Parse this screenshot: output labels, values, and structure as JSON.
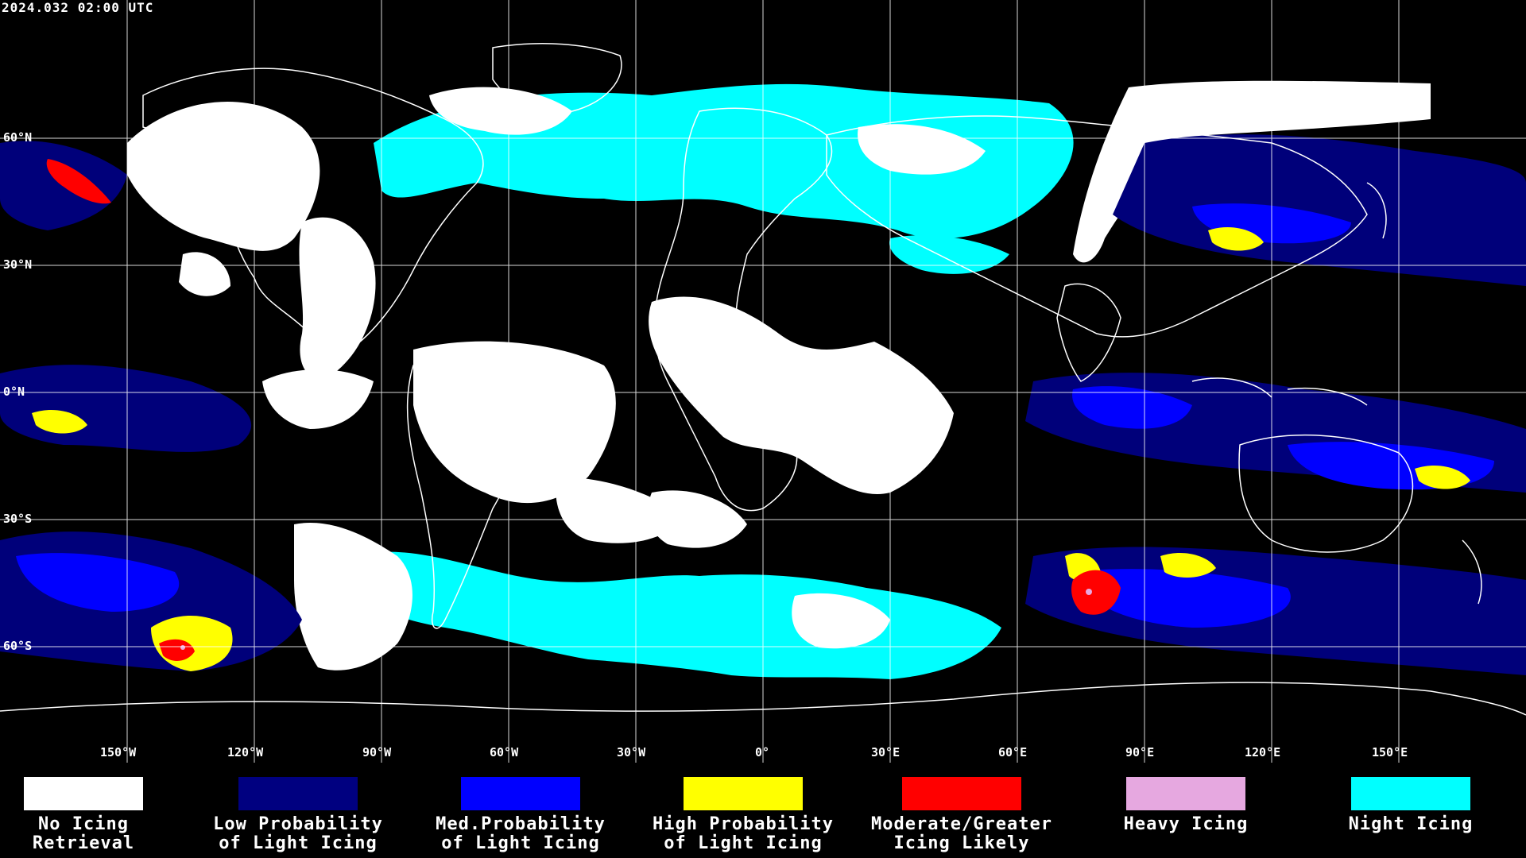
{
  "header": {
    "timestamp": "2024.032 02:00 UTC"
  },
  "map": {
    "latitude_labels": [
      "60°N",
      "30°N",
      "0°N",
      "30°S",
      "60°S"
    ],
    "longitude_labels": [
      "150°W",
      "120°W",
      "90°W",
      "60°W",
      "30°W",
      "0°",
      "30°E",
      "60°E",
      "90°E",
      "120°E",
      "150°E"
    ],
    "colors": {
      "background": "#000000",
      "coastline": "#ffffff",
      "grid": "#ffffff",
      "no_icing": "#ffffff",
      "low_prob": "#00007a",
      "med_prob": "#0000ff",
      "high_prob": "#ffff00",
      "moderate": "#ff0000",
      "heavy": "#e8a8e0",
      "night": "#00ffff"
    }
  },
  "legend": {
    "items": [
      {
        "line1": "No Icing",
        "line2": "Retrieval",
        "color": "#ffffff"
      },
      {
        "line1": "Low Probability",
        "line2": "of Light Icing",
        "color": "#000080"
      },
      {
        "line1": "Med.Probability",
        "line2": "of Light Icing",
        "color": "#0000ff"
      },
      {
        "line1": "High Probability",
        "line2": "of Light Icing",
        "color": "#ffff00"
      },
      {
        "line1": "Moderate/Greater",
        "line2": "Icing Likely",
        "color": "#ff0000"
      },
      {
        "line1": "Heavy Icing",
        "line2": "",
        "color": "#e6a8e0"
      },
      {
        "line1": "Night Icing",
        "line2": "",
        "color": "#00ffff"
      }
    ]
  }
}
